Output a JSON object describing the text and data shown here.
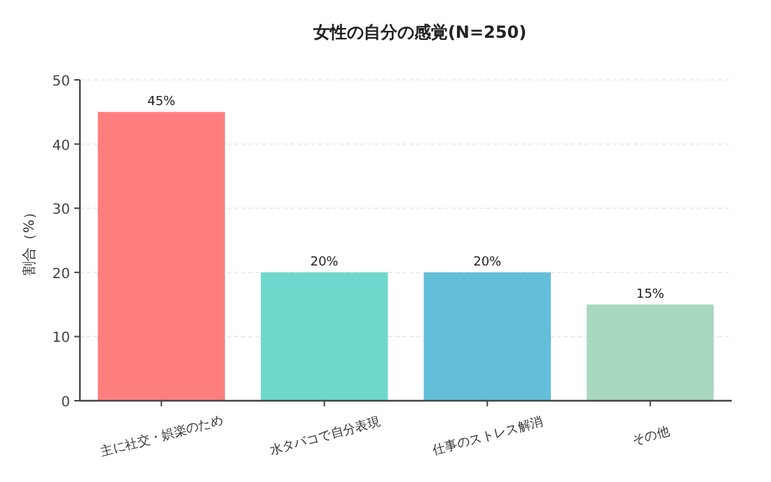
{
  "chart_data": {
    "type": "bar",
    "title": "女性の自分の感覚(N=250)",
    "ylabel": "割合（%）",
    "categories": [
      "主に社交・娯楽のため",
      "水タバコで自分表現",
      "仕事のストレス解消",
      "その他"
    ],
    "values": [
      45,
      20,
      20,
      15
    ],
    "colors": [
      "#ff7f7f",
      "#6fd8cc",
      "#63bfd9",
      "#a8d8c0"
    ],
    "value_labels": [
      "45%",
      "20%",
      "20%",
      "15%"
    ],
    "ylim": [
      0,
      50
    ],
    "yticks": [
      0,
      10,
      20,
      30,
      40,
      50
    ],
    "grid": "y"
  }
}
